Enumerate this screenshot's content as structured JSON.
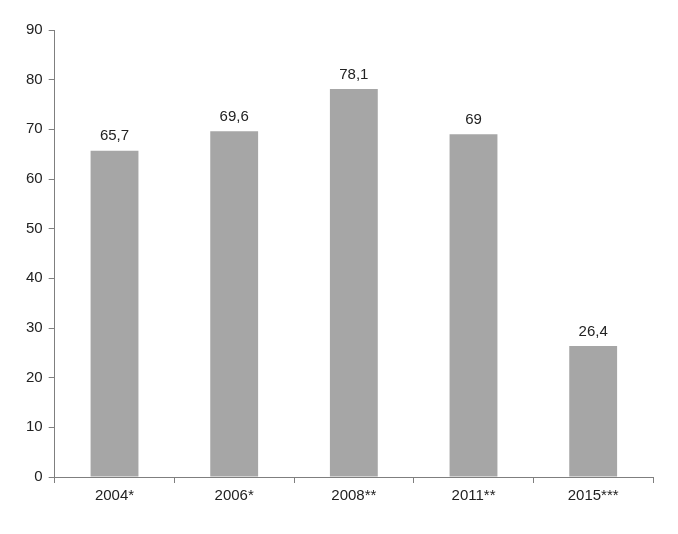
{
  "chart_data": {
    "type": "bar",
    "categories": [
      "2004*",
      "2006*",
      "2008**",
      "2011**",
      "2015***"
    ],
    "values": [
      65.7,
      69.6,
      78.1,
      69,
      26.4
    ],
    "value_labels": [
      "65,7",
      "69,6",
      "78,1",
      "69",
      "26,4"
    ],
    "color": "#a6a6a6",
    "ylim": [
      0,
      90
    ],
    "yticks": [
      0,
      10,
      20,
      30,
      40,
      50,
      60,
      70,
      80,
      90
    ],
    "grid": false,
    "data_labels": true
  }
}
